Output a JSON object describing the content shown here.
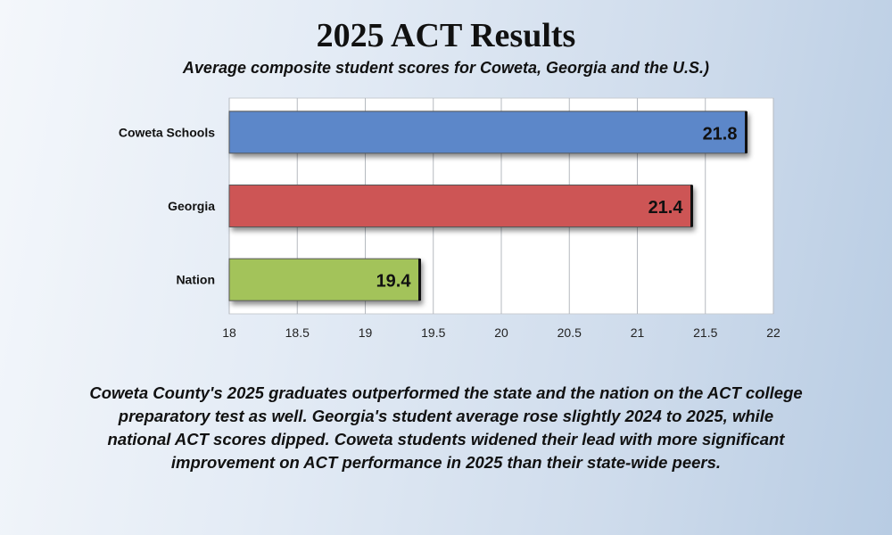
{
  "chart_data": {
    "type": "bar",
    "orientation": "horizontal",
    "title": "2025 ACT Results",
    "subtitle": "Average composite student scores for Coweta, Georgia and the U.S.)",
    "categories": [
      "Coweta Schools",
      "Georgia",
      "Nation"
    ],
    "values": [
      21.8,
      21.4,
      19.4
    ],
    "data_labels": [
      "21.8",
      "21.4",
      "19.4"
    ],
    "colors": [
      "#5b87c9",
      "#cd5555",
      "#a3c35a"
    ],
    "xlim": [
      18,
      22
    ],
    "xticks": [
      "18",
      "18.5",
      "19",
      "19.5",
      "20",
      "20.5",
      "21",
      "21.5",
      "22"
    ],
    "grid": true,
    "legend": "none"
  },
  "caption": "Coweta County's 2025 graduates outperformed the state and the nation on the ACT college preparatory test as well.  Georgia's student average rose slightly 2024 to  2025, while national ACT scores dipped.  Coweta students widened their lead with more significant improvement on ACT performance in 2025 than their state-wide peers."
}
